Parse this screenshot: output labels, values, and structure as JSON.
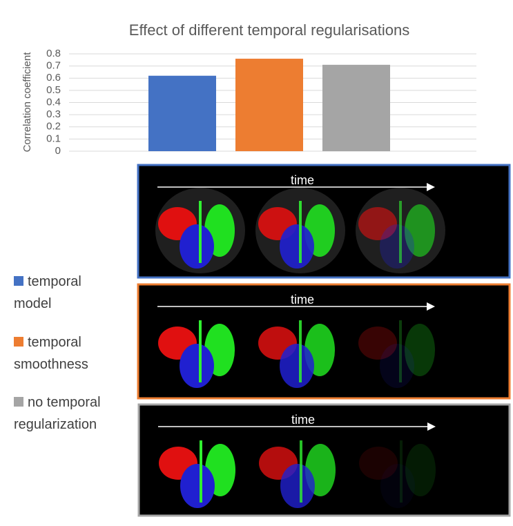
{
  "chart_data": {
    "type": "bar",
    "title": "Effect of different temporal regularisations",
    "ylabel": "Correlation coefficient",
    "series": [
      {
        "name": "temporal model",
        "color": "#4472c4",
        "values": [
          0.62
        ]
      },
      {
        "name": "temporal smoothness",
        "color": "#ed7d31",
        "values": [
          0.76
        ]
      },
      {
        "name": "no temporal regularization",
        "color": "#a5a5a5",
        "values": [
          0.71
        ]
      }
    ],
    "ylim": [
      0,
      0.8
    ],
    "yticks": [
      0,
      0.1,
      0.2,
      0.3,
      0.4,
      0.5,
      0.6,
      0.7,
      0.8
    ],
    "grid": true
  },
  "panels": [
    {
      "label": "time"
    },
    {
      "label": "time"
    },
    {
      "label": "time"
    }
  ]
}
